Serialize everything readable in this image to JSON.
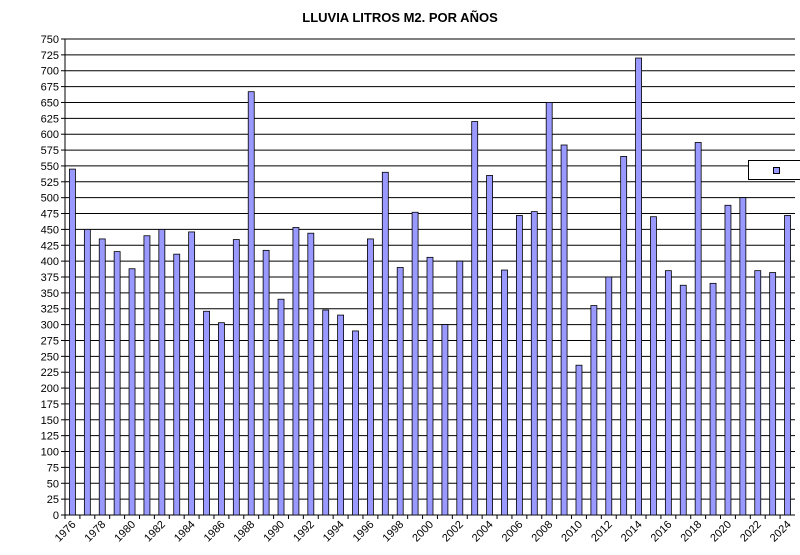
{
  "chart_data": {
    "type": "bar",
    "title": "LLUVIA LITROS M2. POR AÑOS",
    "xlabel": "",
    "ylabel": "",
    "ylim": [
      0,
      750
    ],
    "ytick_step": 25,
    "grid": true,
    "bar_color": "#9999ff",
    "bar_edge_color": "#000000",
    "legend": {
      "placement": "right",
      "entries": [
        ""
      ]
    },
    "categories": [
      "1976",
      "1977",
      "1978",
      "1979",
      "1980",
      "1981",
      "1982",
      "1983",
      "1984",
      "1985",
      "1986",
      "1987",
      "1988",
      "1989",
      "1990",
      "1991",
      "1992",
      "1993",
      "1994",
      "1995",
      "1996",
      "1997",
      "1998",
      "1999",
      "2000",
      "2001",
      "2002",
      "2003",
      "2004",
      "2005",
      "2006",
      "2007",
      "2008",
      "2009",
      "2010",
      "2011",
      "2012",
      "2013",
      "2014",
      "2015",
      "2016",
      "2017",
      "2018",
      "2019",
      "2020",
      "2021",
      "2022",
      "2023",
      "2024"
    ],
    "xtick_labels": [
      "1976",
      "1978",
      "1980",
      "1982",
      "1984",
      "1986",
      "1988",
      "1990",
      "1992",
      "1994",
      "1996",
      "1998",
      "2000",
      "2002",
      "2004",
      "2006",
      "2008",
      "2010",
      "2012",
      "2014",
      "2016",
      "2018",
      "2020",
      "2022",
      "2024"
    ],
    "values": [
      545,
      450,
      435,
      415,
      388,
      440,
      450,
      411,
      446,
      321,
      303,
      434,
      667,
      417,
      340,
      453,
      444,
      323,
      315,
      290,
      435,
      540,
      390,
      477,
      406,
      300,
      400,
      620,
      535,
      386,
      472,
      478,
      650,
      583,
      236,
      330,
      375,
      565,
      720,
      470,
      385,
      362,
      587,
      365,
      488,
      500,
      385,
      382,
      472
    ]
  }
}
